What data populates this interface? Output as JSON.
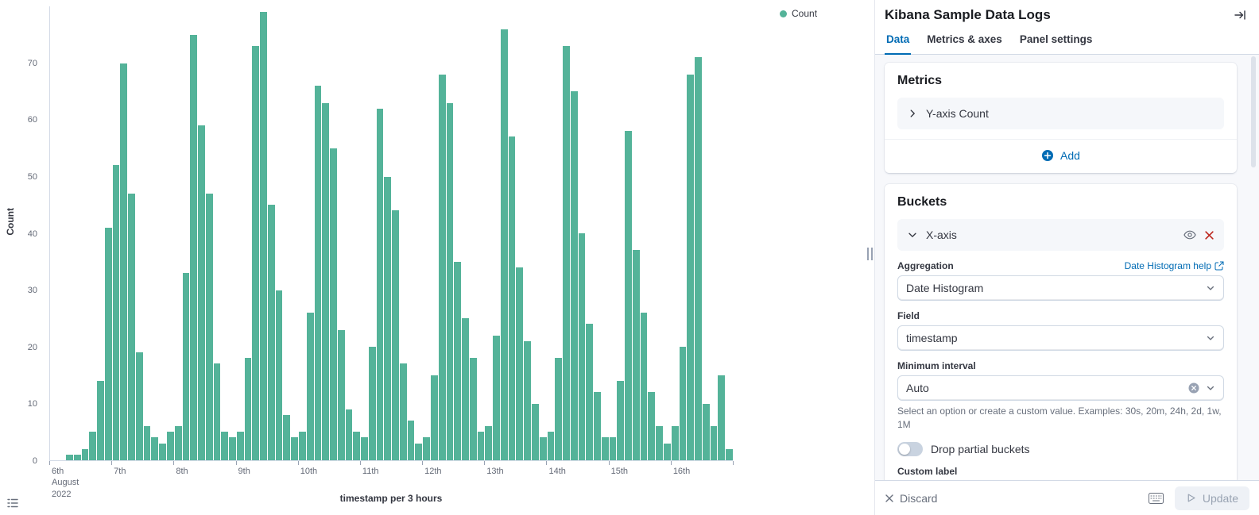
{
  "colors": {
    "accent_blue": "#006BB4",
    "bar_green": "#54B399",
    "danger_red": "#BD271E"
  },
  "icons": {
    "legend-toggle-icon": "list",
    "collapse-panel-icon": "arrow-right-to-line",
    "metric-expand-icon": "chevron-right",
    "bucket-collapse-icon": "chevron-down",
    "eye-icon": "eye",
    "remove-x-axis-icon": "✕",
    "help-external-icon": "external-link",
    "select-chevron-icon": "chevron-down",
    "clear-icon": "✕-in-circle",
    "add-icon": "+-in-circle",
    "discard-icon": "✕",
    "keyboard-icon": "keyboard",
    "update-play-icon": "▷"
  },
  "chart_data": {
    "type": "bar",
    "title": "",
    "xlabel": "timestamp per 3 hours",
    "ylabel": "Count",
    "legend_label": "Count",
    "bar_color": "#54B399",
    "x_start": "2022-08-06T00:00",
    "x_interval": "3h",
    "ylim": [
      0,
      80
    ],
    "y_ticks": [
      0,
      10,
      20,
      30,
      40,
      50,
      60,
      70
    ],
    "ticks_every": 8,
    "x_tick_lines": [
      [
        "6th",
        "August",
        "2022"
      ],
      [
        "7th"
      ],
      [
        "8th"
      ],
      [
        "9th"
      ],
      [
        "10th"
      ],
      [
        "11th"
      ],
      [
        "12th"
      ],
      [
        "13th"
      ],
      [
        "14th"
      ],
      [
        "15th"
      ],
      [
        "16th"
      ]
    ],
    "values": [
      0,
      0,
      1,
      1,
      2,
      5,
      14,
      41,
      52,
      70,
      47,
      19,
      6,
      4,
      3,
      5,
      6,
      33,
      75,
      59,
      47,
      17,
      5,
      4,
      5,
      18,
      73,
      79,
      45,
      30,
      8,
      4,
      5,
      26,
      66,
      63,
      55,
      23,
      9,
      5,
      4,
      20,
      62,
      50,
      44,
      17,
      7,
      3,
      4,
      15,
      68,
      63,
      35,
      25,
      18,
      5,
      6,
      22,
      76,
      57,
      34,
      21,
      10,
      4,
      5,
      18,
      73,
      65,
      40,
      24,
      12,
      4,
      4,
      14,
      58,
      37,
      26,
      12,
      6,
      3,
      6,
      20,
      68,
      71,
      10,
      6,
      15,
      2
    ]
  },
  "panel": {
    "title": "Kibana Sample Data Logs",
    "tabs": [
      {
        "label": "Data"
      },
      {
        "label": "Metrics & axes"
      },
      {
        "label": "Panel settings"
      }
    ],
    "metrics": {
      "heading": "Metrics",
      "row_label": "Y-axis Count",
      "add_label": "Add"
    },
    "buckets": {
      "heading": "Buckets",
      "row_label": "X-axis",
      "aggregation_label": "Aggregation",
      "aggregation_help": "Date Histogram help",
      "aggregation_value": "Date Histogram",
      "field_label": "Field",
      "field_value": "timestamp",
      "min_interval_label": "Minimum interval",
      "min_interval_value": "Auto",
      "min_interval_help": "Select an option or create a custom value. Examples: 30s, 20m, 24h, 2d, 1w, 1M",
      "drop_partial_label": "Drop partial buckets",
      "custom_label_label": "Custom label",
      "custom_label_value": ""
    },
    "footer": {
      "discard_label": "Discard",
      "update_label": "Update"
    }
  }
}
